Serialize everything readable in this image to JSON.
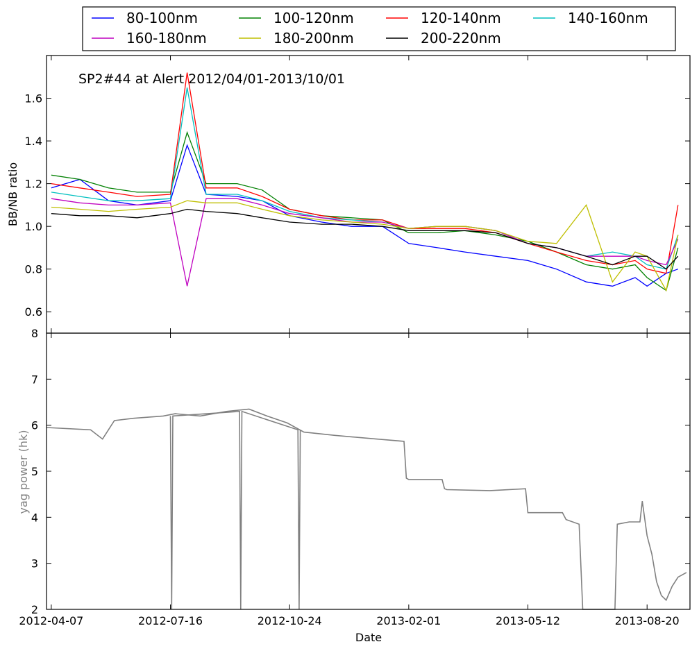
{
  "chart_data": [
    {
      "type": "line",
      "title": "",
      "annotation": "SP2#44 at Alert 2012/04/01-2013/10/01",
      "xlabel": "",
      "ylabel": "BB/NB ratio",
      "xlim": [
        "2012-04-03",
        "2013-09-25"
      ],
      "ylim": [
        0.5,
        1.8
      ],
      "yticks": [
        "0.6",
        "0.8",
        "1.0",
        "1.2",
        "1.4",
        "1.6"
      ],
      "grid": false,
      "legend": "top",
      "x": [
        "2012-04-07",
        "2012-05-01",
        "2012-05-25",
        "2012-06-18",
        "2012-07-16",
        "2012-07-30",
        "2012-08-15",
        "2012-09-10",
        "2012-10-01",
        "2012-10-24",
        "2012-11-20",
        "2012-12-15",
        "2013-01-10",
        "2013-02-01",
        "2013-02-25",
        "2013-03-20",
        "2013-04-15",
        "2013-05-12",
        "2013-06-05",
        "2013-06-30",
        "2013-07-22",
        "2013-08-10",
        "2013-08-20",
        "2013-09-05",
        "2013-09-15"
      ],
      "series": [
        {
          "name": "80-100nm",
          "color": "#0000ff",
          "values": [
            1.18,
            1.22,
            1.12,
            1.1,
            1.12,
            1.38,
            1.15,
            1.14,
            1.12,
            1.05,
            1.02,
            1.0,
            1.0,
            0.92,
            0.9,
            0.88,
            0.86,
            0.84,
            0.8,
            0.74,
            0.72,
            0.76,
            0.72,
            0.78,
            0.8
          ]
        },
        {
          "name": "100-120nm",
          "color": "#008000",
          "values": [
            1.24,
            1.22,
            1.18,
            1.16,
            1.16,
            1.44,
            1.2,
            1.2,
            1.17,
            1.08,
            1.05,
            1.04,
            1.03,
            0.97,
            0.97,
            0.98,
            0.96,
            0.93,
            0.88,
            0.82,
            0.8,
            0.82,
            0.76,
            0.7,
            0.9
          ]
        },
        {
          "name": "120-140nm",
          "color": "#ff0000",
          "values": [
            1.2,
            1.18,
            1.16,
            1.14,
            1.15,
            1.72,
            1.18,
            1.18,
            1.14,
            1.08,
            1.05,
            1.03,
            1.03,
            0.99,
            0.99,
            0.99,
            0.97,
            0.92,
            0.88,
            0.84,
            0.82,
            0.84,
            0.8,
            0.78,
            1.1
          ]
        },
        {
          "name": "140-160nm",
          "color": "#00bfbf",
          "values": [
            1.16,
            1.14,
            1.12,
            1.12,
            1.13,
            1.65,
            1.15,
            1.15,
            1.12,
            1.07,
            1.04,
            1.03,
            1.02,
            0.99,
            1.0,
            1.0,
            0.98,
            0.92,
            0.9,
            0.86,
            0.88,
            0.86,
            0.82,
            0.8,
            0.96
          ]
        },
        {
          "name": "160-180nm",
          "color": "#bf00bf",
          "values": [
            1.13,
            1.11,
            1.1,
            1.1,
            1.11,
            0.72,
            1.13,
            1.13,
            1.1,
            1.06,
            1.04,
            1.02,
            1.02,
            0.99,
            1.0,
            1.0,
            0.98,
            0.92,
            0.9,
            0.86,
            0.86,
            0.86,
            0.84,
            0.82,
            0.94
          ]
        },
        {
          "name": "180-200nm",
          "color": "#bfbf00",
          "values": [
            1.09,
            1.08,
            1.07,
            1.08,
            1.09,
            1.12,
            1.11,
            1.11,
            1.08,
            1.05,
            1.03,
            1.02,
            1.01,
            0.99,
            1.0,
            1.0,
            0.98,
            0.93,
            0.92,
            1.1,
            0.74,
            0.88,
            0.86,
            0.7,
            0.96
          ]
        },
        {
          "name": "200-220nm",
          "color": "#000000",
          "values": [
            1.06,
            1.05,
            1.05,
            1.04,
            1.06,
            1.08,
            1.07,
            1.06,
            1.04,
            1.02,
            1.01,
            1.01,
            1.0,
            0.98,
            0.98,
            0.98,
            0.97,
            0.92,
            0.9,
            0.86,
            0.82,
            0.86,
            0.86,
            0.8,
            0.86
          ]
        }
      ]
    },
    {
      "type": "line",
      "title": "",
      "xlabel": "Date",
      "ylabel": "yag power (hk)",
      "ylabel_color": "#808080",
      "xlim": [
        "2012-04-03",
        "2013-09-25"
      ],
      "ylim": [
        2,
        8
      ],
      "yticks": [
        "2",
        "3",
        "4",
        "5",
        "6",
        "7",
        "8"
      ],
      "xticks": [
        "2012-04-07",
        "2012-07-16",
        "2012-10-24",
        "2013-02-01",
        "2013-05-12",
        "2013-08-20"
      ],
      "grid": false,
      "series": [
        {
          "name": "",
          "color": "#808080",
          "x": [
            "2012-04-03",
            "2012-05-10",
            "2012-05-20",
            "2012-05-30",
            "2012-06-15",
            "2012-07-10",
            "2012-07-20",
            "2012-08-10",
            "2012-09-01",
            "2012-09-20",
            "2012-10-05",
            "2012-10-22",
            "2012-11-05",
            "2012-12-01",
            "2013-01-05",
            "2013-01-28",
            "2013-01-30",
            "2013-02-01",
            "2013-03-01",
            "2013-03-03",
            "2013-03-05",
            "2013-04-10",
            "2013-05-10",
            "2013-05-12",
            "2013-05-14",
            "2013-06-10",
            "2013-06-13",
            "2013-06-24",
            "2013-06-27",
            "2013-07-24",
            "2013-07-26",
            "2013-08-05",
            "2013-08-14",
            "2013-08-16",
            "2013-08-20",
            "2013-08-24",
            "2013-08-28",
            "2013-09-01",
            "2013-09-05",
            "2013-09-10",
            "2013-09-15",
            "2013-09-22"
          ],
          "values": [
            5.95,
            5.9,
            5.7,
            6.1,
            6.15,
            6.2,
            6.25,
            6.2,
            6.3,
            6.35,
            6.2,
            6.05,
            5.85,
            5.78,
            5.7,
            5.65,
            4.85,
            4.82,
            4.82,
            4.62,
            4.6,
            4.58,
            4.62,
            4.1,
            4.1,
            4.1,
            3.95,
            3.85,
            2.0,
            2.0,
            3.85,
            3.9,
            3.9,
            4.35,
            3.6,
            3.2,
            2.6,
            2.3,
            2.2,
            2.5,
            2.7,
            2.8
          ]
        },
        {
          "name": "",
          "color": "#808080",
          "x": [
            "2012-07-16",
            "2012-07-17",
            "2012-07-18",
            "2012-09-12",
            "2012-09-13",
            "2012-09-14",
            "2012-10-31",
            "2012-11-01",
            "2012-11-02"
          ],
          "values": [
            6.2,
            2.0,
            6.2,
            6.3,
            2.0,
            6.3,
            5.9,
            2.0,
            5.9
          ]
        }
      ]
    }
  ],
  "colors": {
    "axis": "#000000",
    "yag": "#808080"
  }
}
